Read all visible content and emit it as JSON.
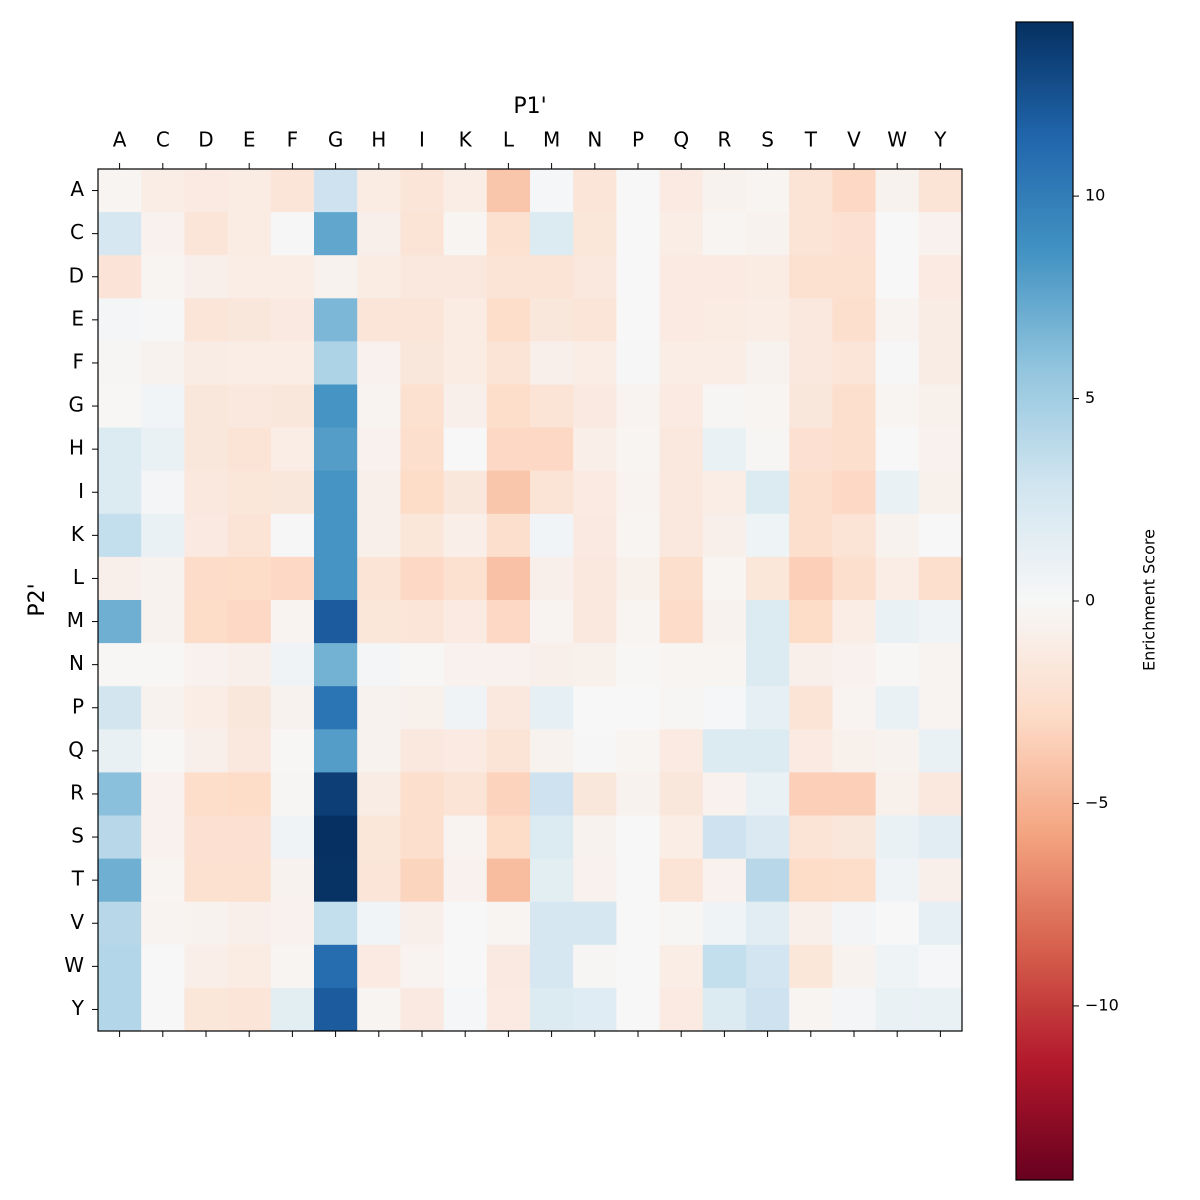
{
  "chart_data": {
    "type": "heatmap",
    "x_label": "P1'",
    "y_label": "P2'",
    "colorbar_label": "Enrichment Score",
    "cmap": "RdBu",
    "vlim": [
      -14.3,
      14.3
    ],
    "cticks": [
      {
        "value": -10,
        "label": "−10"
      },
      {
        "value": -5,
        "label": "−5"
      },
      0,
      5,
      10
    ],
    "x_categories": [
      "A",
      "C",
      "D",
      "E",
      "F",
      "G",
      "H",
      "I",
      "K",
      "L",
      "M",
      "N",
      "P",
      "Q",
      "R",
      "S",
      "T",
      "V",
      "W",
      "Y"
    ],
    "y_categories": [
      "A",
      "C",
      "D",
      "E",
      "F",
      "G",
      "H",
      "I",
      "K",
      "L",
      "M",
      "N",
      "P",
      "Q",
      "R",
      "S",
      "T",
      "V",
      "W",
      "Y"
    ],
    "values": [
      [
        -0.3,
        -1,
        -1.3,
        -1.2,
        -1.8,
        3,
        -1.2,
        -1.8,
        -1,
        -4,
        0.2,
        -1.8,
        0,
        -1.3,
        -0.5,
        -0.3,
        -2,
        -3,
        -0.5,
        -2
      ],
      [
        2.5,
        -0.6,
        -1.8,
        -1.2,
        0.1,
        7.5,
        -0.8,
        -2,
        -0.3,
        -2.3,
        2,
        -1.7,
        0,
        -1,
        -0.3,
        -0.5,
        -2,
        -2.2,
        0,
        -0.6
      ],
      [
        -1.9,
        -0.3,
        -0.8,
        -1,
        -1,
        -0.5,
        -1.2,
        -1.5,
        -1.5,
        -2,
        -2,
        -1.5,
        0,
        -1.3,
        -1.3,
        -1.2,
        -2.3,
        -2.3,
        0,
        -1.3
      ],
      [
        0.3,
        0.1,
        -1.8,
        -1.6,
        -1.4,
        6.5,
        -1.8,
        -1.8,
        -1.2,
        -2.6,
        -1.6,
        -1.8,
        0,
        -1.3,
        -1.2,
        -1,
        -1.5,
        -2.5,
        -0.4,
        -1.1
      ],
      [
        -0.2,
        -0.5,
        -1.1,
        -1,
        -1,
        4.5,
        -0.6,
        -1.6,
        -1.2,
        -2,
        -0.8,
        -1,
        0.1,
        -1,
        -1,
        -0.5,
        -1.5,
        -1.8,
        0.1,
        -1.1
      ],
      [
        -0.1,
        0.5,
        -1.6,
        -1.5,
        -1.6,
        8.5,
        -0.4,
        -2.3,
        -0.8,
        -2.6,
        -2,
        -1.4,
        -0.4,
        -1.3,
        -0.2,
        -0.3,
        -1.6,
        -2.5,
        -0.3,
        -0.7
      ],
      [
        2,
        1,
        -1.6,
        -2,
        -1,
        8,
        -0.6,
        -2.5,
        0,
        -3,
        -3,
        -0.9,
        -0.3,
        -1.5,
        1,
        -0.2,
        -2.2,
        -2.5,
        0,
        -0.6
      ],
      [
        2,
        0.3,
        -1.5,
        -1.7,
        -1.6,
        8.5,
        -0.8,
        -2.8,
        -1.6,
        -4,
        -2,
        -1.3,
        -0.4,
        -1.5,
        -1,
        2,
        -2.5,
        -3,
        1,
        -0.7
      ],
      [
        3.5,
        1,
        -1.4,
        -2,
        0.1,
        8.5,
        -0.8,
        -1.7,
        -0.9,
        -2.5,
        0.5,
        -1.4,
        -0.3,
        -1.5,
        -0.8,
        0.7,
        -2.5,
        -2,
        -0.5,
        0
      ],
      [
        -0.8,
        -0.5,
        -2.7,
        -2.8,
        -3,
        8.5,
        -2,
        -3,
        -2.3,
        -4.2,
        -0.8,
        -1.5,
        -0.7,
        -2.5,
        -0.3,
        -1.7,
        -3.5,
        -2.5,
        -1,
        -2.5
      ],
      [
        7,
        -0.5,
        -2.8,
        -3,
        -0.4,
        12,
        -1.7,
        -1.8,
        -1.3,
        -3,
        -0.4,
        -1.5,
        -0.3,
        -2.7,
        -0.5,
        2,
        -2.8,
        -1,
        1,
        0.6
      ],
      [
        -0.1,
        -0.1,
        -0.6,
        -0.8,
        0.6,
        6.8,
        0.3,
        -0.1,
        -0.6,
        -0.6,
        -0.8,
        -0.7,
        -0.1,
        -0.3,
        -0.3,
        2,
        -0.8,
        -0.6,
        -0.1,
        -0.4
      ],
      [
        2.7,
        -0.5,
        -1,
        -1.6,
        -0.5,
        10.5,
        -0.5,
        -0.7,
        0.6,
        -1.5,
        1.3,
        0,
        0,
        -0.2,
        0.2,
        1.3,
        -2,
        -0.4,
        1,
        -0.4
      ],
      [
        1.1,
        -0.1,
        -0.8,
        -1.5,
        -0.1,
        8,
        -0.5,
        -1.5,
        -1.3,
        -2,
        -0.5,
        0.1,
        -0.3,
        -1.3,
        2,
        2,
        -1.3,
        -0.7,
        -0.5,
        1
      ],
      [
        6,
        -0.6,
        -2.6,
        -2.8,
        -0.2,
        13.5,
        -1.1,
        -2.5,
        -2,
        -3.3,
        3,
        -1.6,
        -0.5,
        -1.6,
        -0.6,
        1,
        -3.5,
        -3.5,
        -0.7,
        -1.5
      ],
      [
        4,
        -0.6,
        -2.2,
        -2.2,
        0.6,
        14.3,
        -1.7,
        -2.5,
        -0.4,
        -2.8,
        2,
        -0.5,
        0,
        -1,
        3,
        2.2,
        -2,
        -1.6,
        1,
        1.6
      ],
      [
        7,
        -0.3,
        -2.3,
        -2.3,
        -0.5,
        14.2,
        -1.8,
        -3.2,
        -0.6,
        -4.5,
        1.5,
        -0.6,
        0,
        -2,
        -0.6,
        4,
        -2.8,
        -2.6,
        0.6,
        -0.8
      ],
      [
        4,
        -0.4,
        -0.5,
        -0.8,
        -0.6,
        3.5,
        0.5,
        -0.8,
        0,
        -0.3,
        2.5,
        2.5,
        0,
        -0.2,
        0.6,
        1.6,
        -0.8,
        0.4,
        0,
        1.3
      ],
      [
        4.2,
        0,
        -0.9,
        -1.2,
        -0.3,
        11,
        -1.3,
        -0.4,
        0,
        -1.4,
        2.5,
        -0.2,
        0,
        -1,
        3.5,
        2.8,
        -1.7,
        -0.5,
        0.7,
        0.2
      ],
      [
        4.2,
        0,
        -1.7,
        -1.8,
        1.5,
        12,
        -0.3,
        -1.4,
        0.2,
        -1.3,
        2,
        1.8,
        0,
        -1.3,
        2,
        3,
        -0.3,
        0.3,
        1,
        1
      ]
    ]
  }
}
